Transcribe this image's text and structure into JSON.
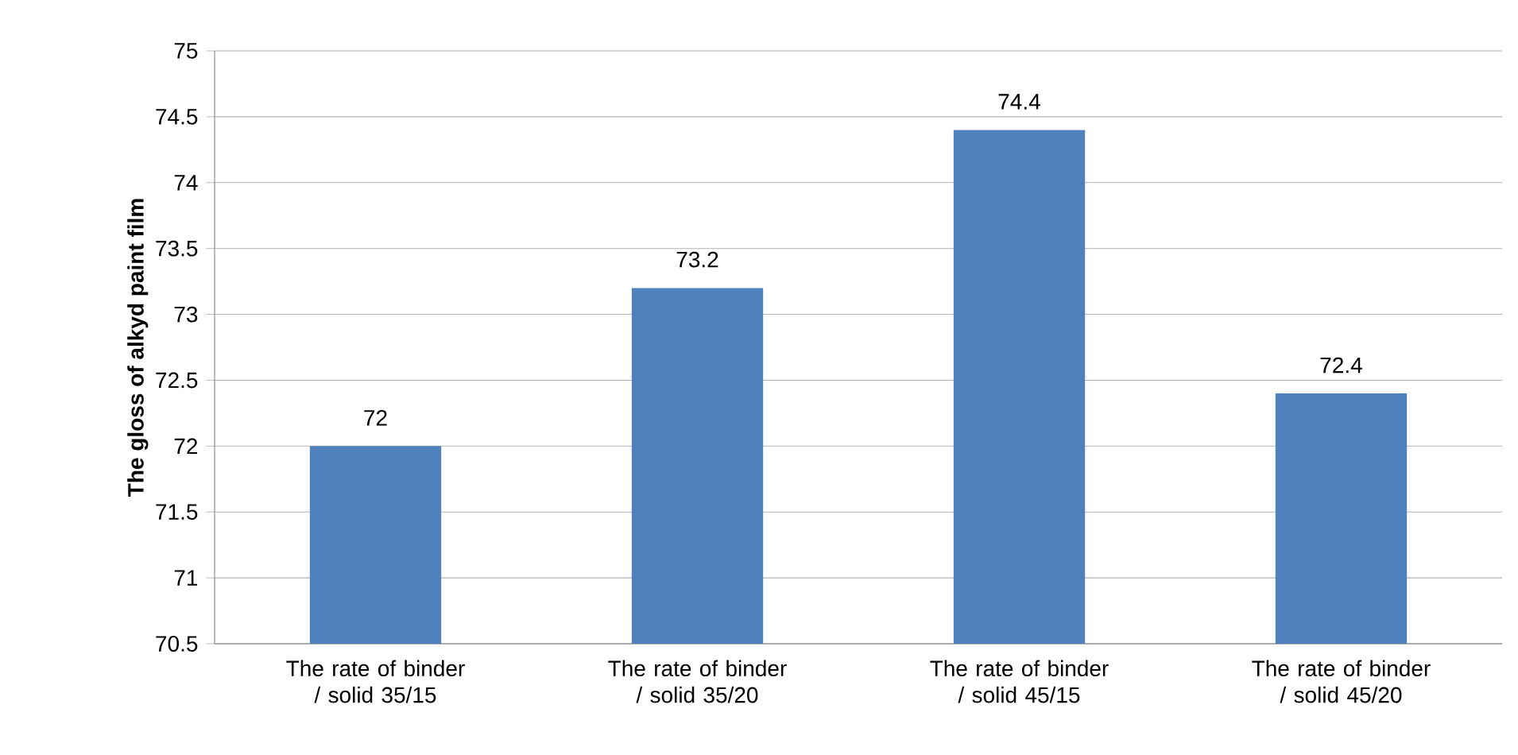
{
  "chart_data": {
    "type": "bar",
    "ylabel": "The gloss of alkyd paint film",
    "categories": [
      "The rate of binder / solid  35/15",
      "The rate of binder / solid  35/20",
      "The rate of binder / solid 45/15",
      "The rate of binder / solid 45/20"
    ],
    "values": [
      72,
      73.2,
      74.4,
      72.4
    ],
    "color": "#4f81bd",
    "ylim": [
      70.5,
      75
    ],
    "yticks": [
      70.5,
      71,
      71.5,
      72,
      72.5,
      73,
      73.5,
      74,
      74.5,
      75
    ],
    "grid": "y",
    "data_labels": true
  }
}
